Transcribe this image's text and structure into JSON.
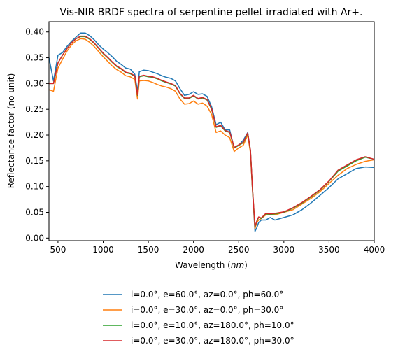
{
  "chart_data": {
    "type": "line",
    "title": "Vis-NIR BRDF spectra of serpentine pellet irradiated with Ar+.",
    "xlabel_prefix": "Wavelength (",
    "xlabel_unit": "nm",
    "xlabel_suffix": ")",
    "ylabel": "Reflectance factor (no unit)",
    "xlim": [
      400,
      4000
    ],
    "ylim": [
      -0.005,
      0.42
    ],
    "xticks": [
      500,
      1000,
      1500,
      2000,
      2500,
      3000,
      3500,
      4000
    ],
    "yticks": [
      0.0,
      0.05,
      0.1,
      0.15,
      0.2,
      0.25,
      0.3,
      0.35,
      0.4
    ],
    "xtick_labels": [
      "500",
      "1000",
      "1500",
      "2000",
      "2500",
      "3000",
      "3500",
      "4000"
    ],
    "ytick_labels": [
      "0.00",
      "0.05",
      "0.10",
      "0.15",
      "0.20",
      "0.25",
      "0.30",
      "0.35",
      "0.40"
    ],
    "legend_placement": "below",
    "series": [
      {
        "name": "i=0.0°, e=60.0°, az=0.0°, ph=60.0°",
        "color": "#1f77b4",
        "x": [
          400,
          450,
          500,
          550,
          600,
          650,
          700,
          750,
          800,
          850,
          900,
          950,
          1000,
          1050,
          1100,
          1150,
          1200,
          1250,
          1300,
          1350,
          1380,
          1400,
          1450,
          1500,
          1550,
          1600,
          1650,
          1700,
          1750,
          1800,
          1850,
          1900,
          1950,
          2000,
          2050,
          2100,
          2150,
          2200,
          2250,
          2300,
          2350,
          2400,
          2450,
          2500,
          2550,
          2600,
          2630,
          2650,
          2680,
          2700,
          2720,
          2750,
          2800,
          2850,
          2900,
          3000,
          3100,
          3200,
          3300,
          3400,
          3500,
          3600,
          3700,
          3800,
          3900,
          4000
        ],
        "y": [
          0.35,
          0.305,
          0.355,
          0.36,
          0.372,
          0.382,
          0.39,
          0.398,
          0.398,
          0.393,
          0.385,
          0.375,
          0.367,
          0.36,
          0.352,
          0.343,
          0.337,
          0.33,
          0.328,
          0.318,
          0.285,
          0.323,
          0.326,
          0.325,
          0.322,
          0.319,
          0.315,
          0.312,
          0.31,
          0.305,
          0.29,
          0.277,
          0.279,
          0.284,
          0.279,
          0.28,
          0.275,
          0.255,
          0.22,
          0.225,
          0.21,
          0.21,
          0.175,
          0.18,
          0.19,
          0.205,
          0.17,
          0.1,
          0.013,
          0.02,
          0.03,
          0.035,
          0.035,
          0.04,
          0.035,
          0.04,
          0.045,
          0.055,
          0.068,
          0.083,
          0.098,
          0.115,
          0.125,
          0.135,
          0.138,
          0.137
        ]
      },
      {
        "name": "i=0.0°, e=30.0°, az=0.0°, ph=30.0°",
        "color": "#ff7f0e",
        "x": [
          400,
          450,
          500,
          550,
          600,
          650,
          700,
          750,
          800,
          850,
          900,
          950,
          1000,
          1050,
          1100,
          1150,
          1200,
          1250,
          1300,
          1350,
          1380,
          1400,
          1450,
          1500,
          1550,
          1600,
          1650,
          1700,
          1750,
          1800,
          1850,
          1900,
          1950,
          2000,
          2050,
          2100,
          2150,
          2200,
          2250,
          2300,
          2350,
          2400,
          2450,
          2500,
          2550,
          2600,
          2630,
          2650,
          2680,
          2700,
          2720,
          2750,
          2800,
          2850,
          2900,
          3000,
          3100,
          3200,
          3300,
          3400,
          3500,
          3600,
          3700,
          3800,
          3900,
          4000
        ],
        "y": [
          0.288,
          0.285,
          0.33,
          0.347,
          0.363,
          0.375,
          0.383,
          0.387,
          0.386,
          0.38,
          0.372,
          0.362,
          0.352,
          0.343,
          0.334,
          0.327,
          0.322,
          0.315,
          0.313,
          0.308,
          0.27,
          0.305,
          0.306,
          0.305,
          0.302,
          0.298,
          0.295,
          0.293,
          0.29,
          0.285,
          0.27,
          0.26,
          0.261,
          0.266,
          0.26,
          0.262,
          0.256,
          0.24,
          0.205,
          0.208,
          0.2,
          0.195,
          0.168,
          0.175,
          0.18,
          0.2,
          0.165,
          0.1,
          0.018,
          0.03,
          0.035,
          0.038,
          0.045,
          0.046,
          0.045,
          0.05,
          0.055,
          0.066,
          0.077,
          0.09,
          0.106,
          0.122,
          0.135,
          0.143,
          0.149,
          0.152
        ]
      },
      {
        "name": "i=0.0°, e=10.0°, az=180.0°, ph=10.0°",
        "color": "#2ca02c",
        "x": [
          400,
          450,
          500,
          550,
          600,
          650,
          700,
          750,
          800,
          850,
          900,
          950,
          1000,
          1050,
          1100,
          1150,
          1200,
          1250,
          1300,
          1350,
          1380,
          1400,
          1450,
          1500,
          1550,
          1600,
          1650,
          1700,
          1750,
          1800,
          1850,
          1900,
          1950,
          2000,
          2050,
          2100,
          2150,
          2200,
          2250,
          2300,
          2350,
          2400,
          2450,
          2500,
          2550,
          2600,
          2630,
          2650,
          2680,
          2700,
          2720,
          2750,
          2800,
          2850,
          2900,
          3000,
          3100,
          3200,
          3300,
          3400,
          3500,
          3600,
          3700,
          3800,
          3900,
          4000
        ],
        "y": [
          0.3,
          0.3,
          0.34,
          0.355,
          0.368,
          0.379,
          0.387,
          0.391,
          0.391,
          0.386,
          0.378,
          0.368,
          0.358,
          0.35,
          0.341,
          0.333,
          0.328,
          0.321,
          0.319,
          0.314,
          0.277,
          0.313,
          0.315,
          0.313,
          0.312,
          0.309,
          0.305,
          0.302,
          0.299,
          0.295,
          0.28,
          0.271,
          0.271,
          0.276,
          0.27,
          0.272,
          0.268,
          0.25,
          0.215,
          0.218,
          0.208,
          0.205,
          0.175,
          0.18,
          0.185,
          0.203,
          0.17,
          0.103,
          0.022,
          0.032,
          0.04,
          0.038,
          0.047,
          0.046,
          0.047,
          0.05,
          0.058,
          0.068,
          0.08,
          0.093,
          0.11,
          0.13,
          0.14,
          0.15,
          0.157,
          0.153
        ]
      },
      {
        "name": "i=0.0°, e=30.0°, az=180.0°, ph=30.0°",
        "color": "#d62728",
        "x": [
          400,
          450,
          500,
          550,
          600,
          650,
          700,
          750,
          800,
          850,
          900,
          950,
          1000,
          1050,
          1100,
          1150,
          1200,
          1250,
          1300,
          1350,
          1380,
          1400,
          1450,
          1500,
          1550,
          1600,
          1650,
          1700,
          1750,
          1800,
          1850,
          1900,
          1950,
          2000,
          2050,
          2100,
          2150,
          2200,
          2250,
          2300,
          2350,
          2400,
          2450,
          2500,
          2550,
          2600,
          2630,
          2650,
          2680,
          2700,
          2720,
          2750,
          2800,
          2850,
          2900,
          3000,
          3100,
          3200,
          3300,
          3400,
          3500,
          3600,
          3700,
          3800,
          3900,
          4000
        ],
        "y": [
          0.3,
          0.3,
          0.34,
          0.355,
          0.368,
          0.379,
          0.387,
          0.392,
          0.392,
          0.387,
          0.379,
          0.369,
          0.359,
          0.351,
          0.342,
          0.334,
          0.329,
          0.322,
          0.32,
          0.315,
          0.278,
          0.314,
          0.316,
          0.314,
          0.313,
          0.31,
          0.306,
          0.303,
          0.3,
          0.296,
          0.281,
          0.272,
          0.272,
          0.277,
          0.271,
          0.273,
          0.269,
          0.251,
          0.216,
          0.219,
          0.209,
          0.206,
          0.176,
          0.181,
          0.186,
          0.204,
          0.171,
          0.104,
          0.023,
          0.033,
          0.041,
          0.039,
          0.048,
          0.047,
          0.048,
          0.051,
          0.059,
          0.069,
          0.081,
          0.094,
          0.111,
          0.132,
          0.142,
          0.152,
          0.158,
          0.153
        ]
      }
    ]
  }
}
